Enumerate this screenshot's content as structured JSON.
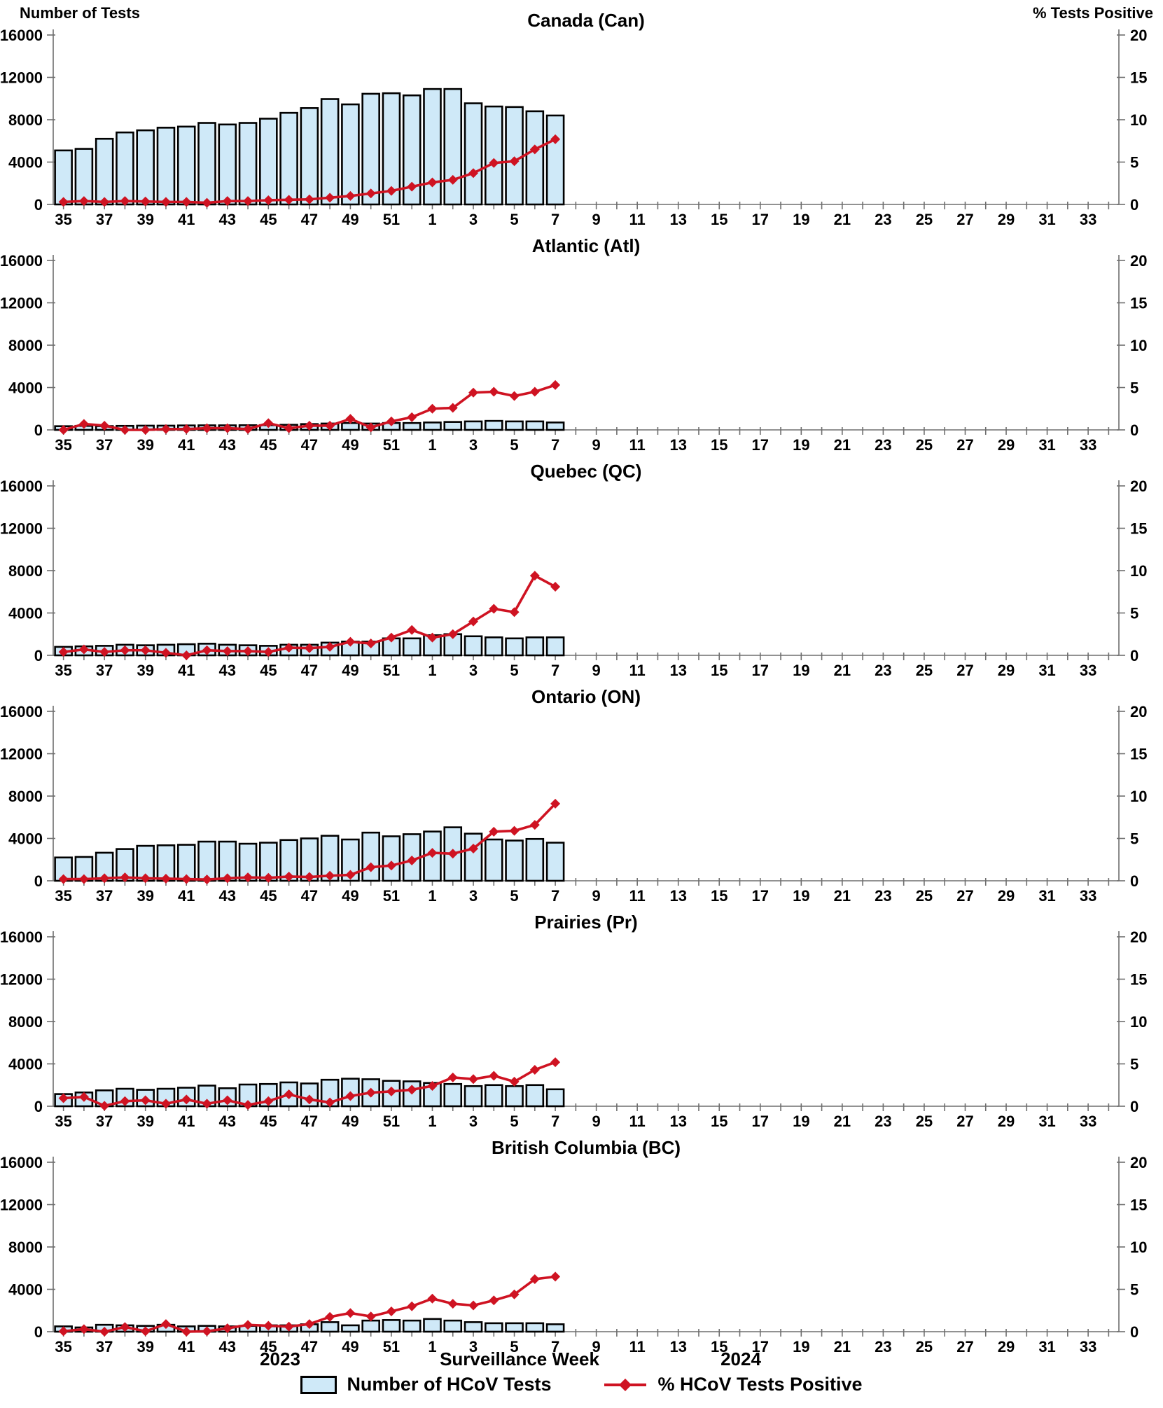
{
  "header": {
    "left_axis_title": "Number of Tests",
    "right_axis_title": "% Tests Positive"
  },
  "footer": {
    "year_left": "2023",
    "x_axis_title": "Surveillance Week",
    "year_right": "2024"
  },
  "legend": {
    "bars_label": "Number of HCoV Tests",
    "line_label": "% HCoV Tests Positive"
  },
  "colors": {
    "bar_fill": "#cfe9f8",
    "bar_border": "#000000",
    "line": "#cf1322",
    "axis": "#6e6e6e",
    "text": "#000000"
  },
  "axes": {
    "y_left_ticks": [
      "0",
      "4000",
      "8000",
      "12000",
      "16000"
    ],
    "y_left_max": 16000,
    "y_right_ticks": [
      "0",
      "5",
      "10",
      "15",
      "20"
    ],
    "y_right_max": 20,
    "x_tick_labels": [
      "35",
      "37",
      "39",
      "41",
      "43",
      "45",
      "47",
      "49",
      "51",
      "1",
      "3",
      "5",
      "7",
      "9",
      "11",
      "13",
      "15",
      "17",
      "19",
      "21",
      "23",
      "25",
      "27",
      "29",
      "31",
      "33"
    ],
    "x_total_week_slots": 52
  },
  "chart_data": [
    {
      "type": "bar+line",
      "region": "Canada",
      "title": "Canada (Can)",
      "weeks": [
        35,
        36,
        37,
        38,
        39,
        40,
        41,
        42,
        43,
        44,
        45,
        46,
        47,
        48,
        49,
        50,
        51,
        52,
        1,
        2,
        3,
        4,
        5,
        6,
        7
      ],
      "series": [
        {
          "name": "Number of HCoV Tests",
          "axis": "left",
          "values": [
            5100,
            5250,
            6200,
            6800,
            7000,
            7250,
            7350,
            7700,
            7550,
            7700,
            8100,
            8650,
            9100,
            9950,
            9450,
            10450,
            10500,
            10300,
            10900,
            10900,
            9550,
            9250,
            9200,
            8800,
            8400
          ]
        },
        {
          "name": "% HCoV Tests Positive",
          "axis": "right",
          "values": [
            0.3,
            0.4,
            0.3,
            0.4,
            0.35,
            0.3,
            0.3,
            0.2,
            0.4,
            0.4,
            0.5,
            0.55,
            0.6,
            0.8,
            1.0,
            1.3,
            1.6,
            2.1,
            2.6,
            2.9,
            3.7,
            4.9,
            5.1,
            6.5,
            7.7
          ]
        }
      ]
    },
    {
      "type": "bar+line",
      "region": "Atlantic",
      "title": "Atlantic (Atl)",
      "weeks": [
        35,
        36,
        37,
        38,
        39,
        40,
        41,
        42,
        43,
        44,
        45,
        46,
        47,
        48,
        49,
        50,
        51,
        52,
        1,
        2,
        3,
        4,
        5,
        6,
        7
      ],
      "series": [
        {
          "name": "Number of HCoV Tests",
          "axis": "left",
          "values": [
            350,
            380,
            360,
            380,
            400,
            400,
            420,
            430,
            430,
            440,
            450,
            480,
            550,
            600,
            650,
            600,
            650,
            650,
            700,
            750,
            800,
            850,
            800,
            800,
            700
          ]
        },
        {
          "name": "% HCoV Tests Positive",
          "axis": "right",
          "values": [
            0.0,
            0.7,
            0.5,
            0.0,
            0.0,
            0.1,
            0.1,
            0.2,
            0.2,
            0.1,
            0.8,
            0.2,
            0.5,
            0.5,
            1.3,
            0.3,
            1.0,
            1.5,
            2.5,
            2.6,
            4.4,
            4.5,
            4.0,
            4.5,
            5.3
          ]
        }
      ]
    },
    {
      "type": "bar+line",
      "region": "Quebec",
      "title": "Quebec (QC)",
      "weeks": [
        35,
        36,
        37,
        38,
        39,
        40,
        41,
        42,
        43,
        44,
        45,
        46,
        47,
        48,
        49,
        50,
        51,
        52,
        1,
        2,
        3,
        4,
        5,
        6,
        7
      ],
      "series": [
        {
          "name": "Number of HCoV Tests",
          "axis": "left",
          "values": [
            800,
            850,
            900,
            1000,
            950,
            1000,
            1050,
            1100,
            1000,
            950,
            900,
            1000,
            1000,
            1200,
            1300,
            1300,
            1600,
            1600,
            1900,
            2000,
            1800,
            1700,
            1600,
            1700,
            1700
          ]
        },
        {
          "name": "% HCoV Tests Positive",
          "axis": "right",
          "values": [
            0.4,
            0.7,
            0.4,
            0.6,
            0.6,
            0.3,
            0.0,
            0.6,
            0.5,
            0.5,
            0.4,
            0.9,
            0.85,
            1.0,
            1.6,
            1.4,
            2.1,
            3.0,
            2.1,
            2.5,
            4.0,
            5.5,
            5.1,
            9.4,
            8.1
          ]
        }
      ]
    },
    {
      "type": "bar+line",
      "region": "Ontario",
      "title": "Ontario (ON)",
      "weeks": [
        35,
        36,
        37,
        38,
        39,
        40,
        41,
        42,
        43,
        44,
        45,
        46,
        47,
        48,
        49,
        50,
        51,
        52,
        1,
        2,
        3,
        4,
        5,
        6,
        7
      ],
      "series": [
        {
          "name": "Number of HCoV Tests",
          "axis": "left",
          "values": [
            2200,
            2250,
            2650,
            3000,
            3300,
            3350,
            3400,
            3700,
            3700,
            3500,
            3600,
            3850,
            4000,
            4250,
            3900,
            4550,
            4200,
            4400,
            4650,
            5050,
            4450,
            3900,
            3800,
            3950,
            3600
          ]
        },
        {
          "name": "% HCoV Tests Positive",
          "axis": "right",
          "values": [
            0.2,
            0.2,
            0.3,
            0.4,
            0.3,
            0.25,
            0.2,
            0.15,
            0.3,
            0.4,
            0.35,
            0.5,
            0.45,
            0.6,
            0.7,
            1.6,
            1.8,
            2.4,
            3.3,
            3.2,
            3.8,
            5.8,
            5.9,
            6.6,
            9.1
          ]
        }
      ]
    },
    {
      "type": "bar+line",
      "region": "Prairies",
      "title": "Prairies (Pr)",
      "weeks": [
        35,
        36,
        37,
        38,
        39,
        40,
        41,
        42,
        43,
        44,
        45,
        46,
        47,
        48,
        49,
        50,
        51,
        52,
        1,
        2,
        3,
        4,
        5,
        6,
        7
      ],
      "series": [
        {
          "name": "Number of HCoV Tests",
          "axis": "left",
          "values": [
            1150,
            1300,
            1500,
            1650,
            1550,
            1650,
            1750,
            1950,
            1700,
            2050,
            2100,
            2250,
            2150,
            2500,
            2600,
            2550,
            2400,
            2350,
            2200,
            2100,
            1900,
            2000,
            1900,
            2000,
            1600
          ]
        },
        {
          "name": "% HCoV Tests Positive",
          "axis": "right",
          "values": [
            0.95,
            1.1,
            0.05,
            0.6,
            0.7,
            0.3,
            0.8,
            0.3,
            0.7,
            0.15,
            0.6,
            1.4,
            0.8,
            0.45,
            1.2,
            1.6,
            1.75,
            1.95,
            2.4,
            3.4,
            3.2,
            3.6,
            2.9,
            4.3,
            5.2
          ]
        }
      ]
    },
    {
      "type": "bar+line",
      "region": "British Columbia",
      "title": "British Columbia (BC)",
      "weeks": [
        35,
        36,
        37,
        38,
        39,
        40,
        41,
        42,
        43,
        44,
        45,
        46,
        47,
        48,
        49,
        50,
        51,
        52,
        1,
        2,
        3,
        4,
        5,
        6,
        7
      ],
      "series": [
        {
          "name": "Number of HCoV Tests",
          "axis": "left",
          "values": [
            500,
            400,
            650,
            600,
            550,
            650,
            500,
            550,
            500,
            550,
            600,
            600,
            700,
            900,
            600,
            1050,
            1100,
            1050,
            1200,
            1050,
            900,
            800,
            800,
            800,
            700
          ]
        },
        {
          "name": "% HCoV Tests Positive",
          "axis": "right",
          "values": [
            0.05,
            0.3,
            0.0,
            0.55,
            0.05,
            0.9,
            0.0,
            0.05,
            0.4,
            0.8,
            0.7,
            0.6,
            0.9,
            1.75,
            2.2,
            1.8,
            2.4,
            3.0,
            3.9,
            3.3,
            3.1,
            3.7,
            4.4,
            6.2,
            6.5
          ]
        }
      ]
    }
  ]
}
